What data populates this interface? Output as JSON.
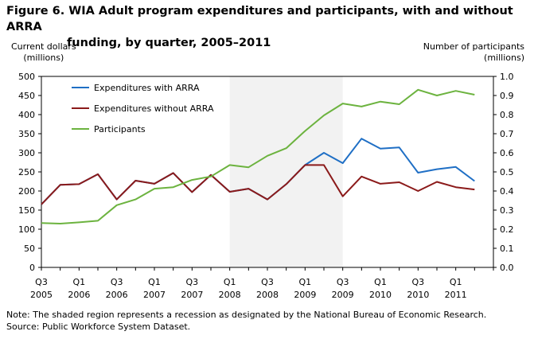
{
  "figure": {
    "title_line1": "Figure 6. WIA Adult program expenditures and participants, with and without ARRA",
    "title_line2": "funding, by quarter, 2005–2011",
    "left_axis_title_line1": "Current dollars",
    "left_axis_title_line2": "(millions)",
    "right_axis_title_line1": "Number of participants",
    "right_axis_title_line2": "(millions)",
    "note": "Note: The shaded region represents a recession as designated by the National Bureau of Economic Research.",
    "source": "Source: Public Workforce System Dataset."
  },
  "chart_data": {
    "type": "line",
    "title": "Figure 6. WIA Adult program expenditures and participants, with and without ARRA funding, by quarter, 2005–2011",
    "ylabel": "Current dollars (millions)",
    "y2label": "Number of participants (millions)",
    "ylim": [
      0,
      500
    ],
    "y2lim": [
      0,
      1.0
    ],
    "yticks": [
      "0",
      "50",
      "100",
      "150",
      "200",
      "250",
      "300",
      "350",
      "400",
      "450",
      "500"
    ],
    "y2ticks": [
      "0.0",
      "0.1",
      "0.2",
      "0.3",
      "0.4",
      "0.5",
      "0.6",
      "0.7",
      "0.8",
      "0.9",
      "1.0"
    ],
    "x_tick_labels": [
      {
        "q": "Q3",
        "y": "2005"
      },
      {
        "q": "Q1",
        "y": "2006"
      },
      {
        "q": "Q3",
        "y": "2006"
      },
      {
        "q": "Q1",
        "y": "2007"
      },
      {
        "q": "Q3",
        "y": "2007"
      },
      {
        "q": "Q1",
        "y": "2008"
      },
      {
        "q": "Q3",
        "y": "2008"
      },
      {
        "q": "Q1",
        "y": "2009"
      },
      {
        "q": "Q3",
        "y": "2009"
      },
      {
        "q": "Q1",
        "y": "2010"
      },
      {
        "q": "Q3",
        "y": "2010"
      },
      {
        "q": "Q1",
        "y": "2011"
      }
    ],
    "x": [
      "2005 Q3",
      "2005 Q4",
      "2006 Q1",
      "2006 Q2",
      "2006 Q3",
      "2006 Q4",
      "2007 Q1",
      "2007 Q2",
      "2007 Q3",
      "2007 Q4",
      "2008 Q1",
      "2008 Q2",
      "2008 Q3",
      "2008 Q4",
      "2009 Q1",
      "2009 Q2",
      "2009 Q3",
      "2009 Q4",
      "2010 Q1",
      "2010 Q2",
      "2010 Q3",
      "2010 Q4",
      "2011 Q1",
      "2011 Q2"
    ],
    "recession": {
      "start": "2008 Q1",
      "end": "2009 Q3"
    },
    "grid": false,
    "legend_position": "top-left",
    "series": [
      {
        "name": "Expenditures with ARRA",
        "color": "#1f6fc5",
        "axis": "left",
        "values": [
          165,
          216,
          218,
          244,
          178,
          227,
          219,
          247,
          197,
          242,
          198,
          206,
          178,
          218,
          268,
          300,
          273,
          337,
          311,
          314,
          248,
          257,
          263,
          226
        ]
      },
      {
        "name": "Expenditures without ARRA",
        "color": "#8b1a1a",
        "axis": "left",
        "values": [
          165,
          216,
          218,
          244,
          178,
          227,
          219,
          247,
          197,
          242,
          198,
          206,
          178,
          218,
          268,
          268,
          186,
          238,
          219,
          223,
          200,
          224,
          210,
          204
        ]
      },
      {
        "name": "Participants",
        "color": "#6cb33f",
        "axis": "right",
        "values": [
          0.232,
          0.229,
          0.236,
          0.244,
          0.326,
          0.356,
          0.412,
          0.42,
          0.458,
          0.476,
          0.536,
          0.524,
          0.584,
          0.624,
          0.714,
          0.796,
          0.858,
          0.842,
          0.868,
          0.854,
          0.93,
          0.9,
          0.924,
          0.904
        ]
      }
    ]
  }
}
